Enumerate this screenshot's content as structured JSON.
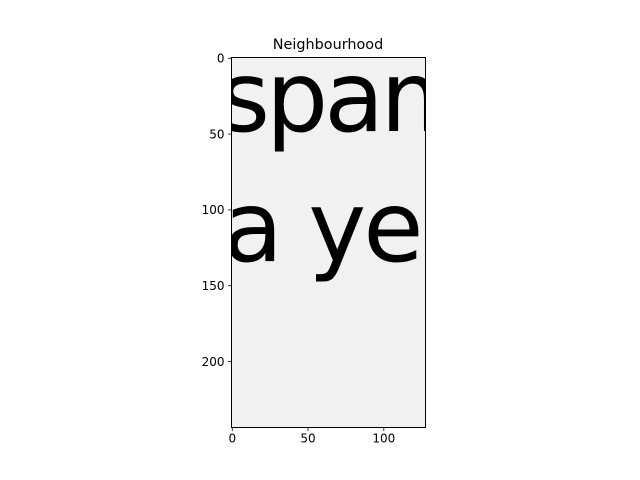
{
  "chart_data": {
    "type": "image",
    "title": "Neighbourhood",
    "xlabel": "",
    "ylabel": "",
    "xlim": [
      -0.5,
      127.5
    ],
    "ylim": [
      243.5,
      -0.5
    ],
    "x_ticks": [
      0,
      50,
      100
    ],
    "y_ticks": [
      0,
      50,
      100,
      150,
      200
    ],
    "grid": false,
    "legend": "none",
    "image_words": [
      "spam",
      "a yea"
    ],
    "colors": {
      "background": "#f4f4f4",
      "ink": "#1c1c1c",
      "axis": "#000000"
    }
  }
}
